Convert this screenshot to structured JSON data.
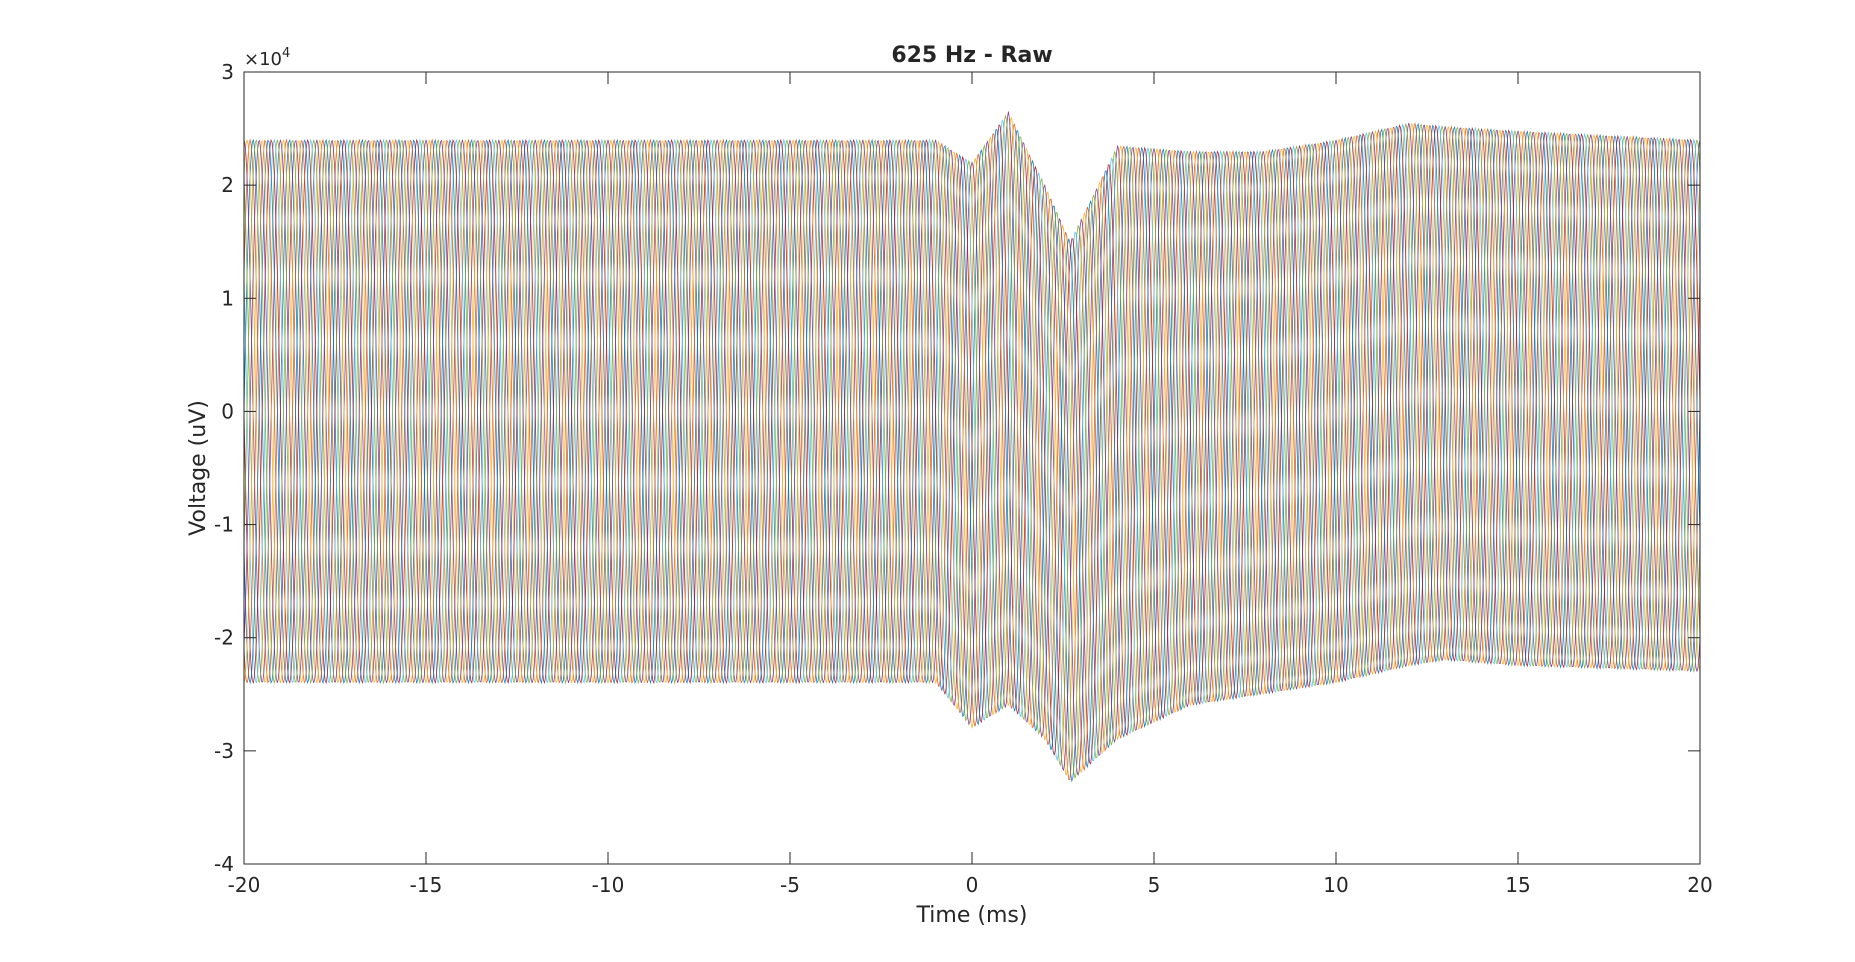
{
  "chart_data": {
    "type": "line",
    "title": "625 Hz - Raw",
    "xlabel": "Time (ms)",
    "ylabel": "Voltage (uV)",
    "y_exponent_label": "×10",
    "y_exponent_power": "4",
    "xlim": [
      -20,
      20
    ],
    "ylim": [
      -40000,
      30000
    ],
    "xticks": [
      -20,
      -15,
      -10,
      -5,
      0,
      5,
      10,
      15,
      20
    ],
    "xtick_labels": [
      "-20",
      "-15",
      "-10",
      "-5",
      "0",
      "5",
      "10",
      "15",
      "20"
    ],
    "yticks": [
      -40000,
      -30000,
      -20000,
      -10000,
      0,
      10000,
      20000,
      30000
    ],
    "ytick_labels": [
      "-4",
      "-3",
      "-2",
      "-1",
      "0",
      "1",
      "2",
      "3"
    ],
    "grid": false,
    "series_description_note": "",
    "envelope": {
      "x": [
        -20,
        -10,
        -1,
        0,
        1,
        2,
        2.7,
        4,
        6,
        8,
        10,
        12,
        13,
        15,
        20
      ],
      "upper": [
        24000,
        24000,
        24000,
        22000,
        26500,
        20000,
        15000,
        23500,
        23000,
        23000,
        24000,
        25500,
        25200,
        24800,
        24000
      ],
      "lower": [
        -24000,
        -24000,
        -24000,
        -28000,
        -26000,
        -29000,
        -32800,
        -29000,
        -26000,
        -25000,
        -24000,
        -22500,
        -22000,
        -22500,
        -23000
      ]
    },
    "num_traces": 12,
    "oscillation_freq_khz": 0.625,
    "colors": [
      "#0072BD",
      "#D95319",
      "#EDB120",
      "#7E2F8E",
      "#77AC30",
      "#4DBEEE",
      "#A2142F"
    ]
  }
}
